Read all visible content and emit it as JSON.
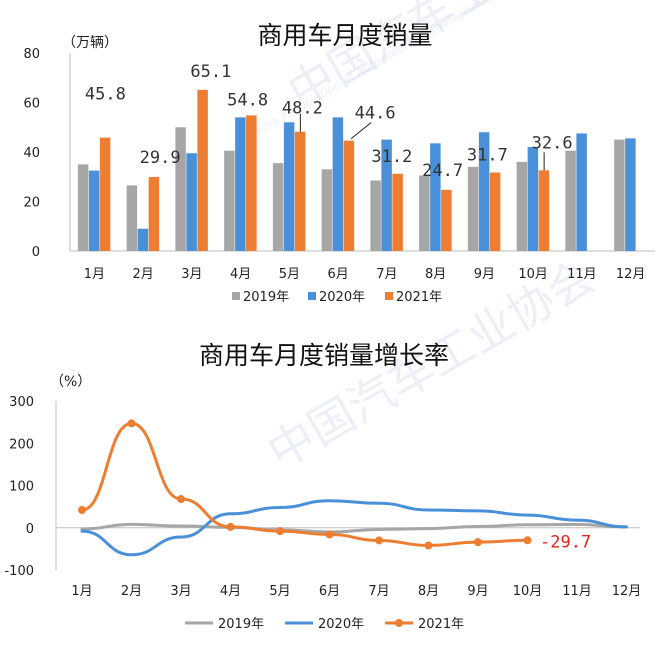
{
  "chart_data": [
    {
      "type": "bar",
      "title": "商用车月度销量",
      "ylabel": "（万辆）",
      "ylim": [
        0,
        80
      ],
      "yticks": [
        0,
        20,
        40,
        60,
        80
      ],
      "categories": [
        "1月",
        "2月",
        "3月",
        "4月",
        "5月",
        "6月",
        "7月",
        "8月",
        "9月",
        "10月",
        "11月",
        "12月"
      ],
      "series": [
        {
          "name": "2019年",
          "color": "#a6a6a6",
          "values": [
            35,
            26.5,
            50,
            40.5,
            35.5,
            33,
            28.5,
            30.5,
            34,
            36,
            40.5,
            45
          ]
        },
        {
          "name": "2020年",
          "color": "#4a90d9",
          "values": [
            32.5,
            9,
            39.5,
            54,
            52,
            54,
            45,
            43.5,
            48,
            42,
            47.5,
            45.5
          ]
        },
        {
          "name": "2021年",
          "color": "#ed7d31",
          "values": [
            45.8,
            29.9,
            65.1,
            54.8,
            48.2,
            44.6,
            31.2,
            24.7,
            31.7,
            32.6,
            null,
            null
          ]
        }
      ],
      "data_labels": [
        "45.8",
        "29.9",
        "65.1",
        "54.8",
        "48.2",
        "44.6",
        "31.2",
        "24.7",
        "31.7",
        "32.6"
      ],
      "legend": "bottom"
    },
    {
      "type": "line",
      "title": "商用车月度销量增长率",
      "ylabel": "（%）",
      "ylim": [
        -100,
        300
      ],
      "yticks": [
        -100,
        0,
        100,
        200,
        300
      ],
      "categories": [
        "1月",
        "2月",
        "3月",
        "4月",
        "5月",
        "6月",
        "7月",
        "8月",
        "9月",
        "10月",
        "11月",
        "12月"
      ],
      "series": [
        {
          "name": "2019年",
          "color": "#a6a6a6",
          "values": [
            -3,
            8,
            4,
            1,
            -5,
            -10,
            -4,
            -2,
            3,
            7,
            8,
            2
          ]
        },
        {
          "name": "2020年",
          "color": "#4a90d9",
          "values": [
            -8,
            -64,
            -22,
            33,
            48,
            64,
            58,
            42,
            40,
            30,
            18,
            2
          ]
        },
        {
          "name": "2021年",
          "color": "#ed7d31",
          "values": [
            42,
            247,
            68,
            2,
            -8,
            -16,
            -30,
            -42,
            -34,
            -29.7,
            null,
            null
          ]
        }
      ],
      "data_labels": [
        "-29.7"
      ],
      "legend": "bottom"
    }
  ],
  "watermark": "中国汽车工业协会",
  "watermark_en": "China Association of Automobile Manufacturers"
}
